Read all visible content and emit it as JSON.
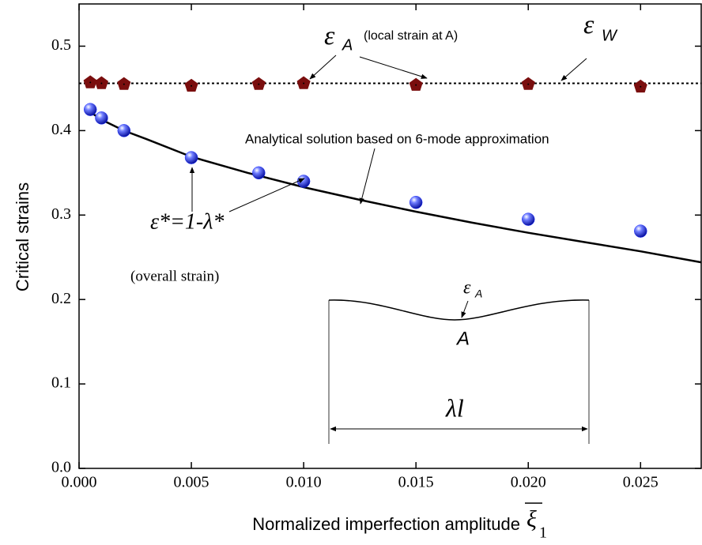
{
  "chart_data": {
    "type": "scatter",
    "y_label": "Critical strains",
    "x_label": "Normalized imperfection amplitude",
    "x_label_symbol": "ξ",
    "x_label_subscript": "1",
    "xlim": [
      0,
      0.0277
    ],
    "ylim": [
      0,
      0.55
    ],
    "xticks": [
      {
        "value": 0,
        "label": "0.000"
      },
      {
        "value": 0.005,
        "label": "0.005"
      },
      {
        "value": 0.01,
        "label": "0.010"
      },
      {
        "value": 0.015,
        "label": "0.015"
      },
      {
        "value": 0.02,
        "label": "0.020"
      },
      {
        "value": 0.025,
        "label": "0.025"
      }
    ],
    "yticks": [
      {
        "value": 0,
        "label": "0.0"
      },
      0.1,
      0.2,
      0.3,
      0.4,
      0.5
    ],
    "reference_line": {
      "y": 0.456,
      "color": "#000000",
      "style": "dotted"
    },
    "series": [
      {
        "kind": "line",
        "color": "#000000",
        "x": [
          0.0005,
          0.001,
          0.002,
          0.003,
          0.005,
          0.0075,
          0.01,
          0.0125,
          0.015,
          0.0175,
          0.02,
          0.0225,
          0.025,
          0.0277
        ],
        "values": [
          0.422,
          0.413,
          0.4,
          0.39,
          0.369,
          0.35,
          0.333,
          0.318,
          0.304,
          0.291,
          0.279,
          0.268,
          0.257,
          0.244
        ]
      },
      {
        "kind": "markers",
        "marker": "pentagon",
        "color": "#7a0e0e",
        "x": [
          0.0005,
          0.001,
          0.002,
          0.005,
          0.008,
          0.01,
          0.015,
          0.02,
          0.025
        ],
        "values": [
          0.457,
          0.456,
          0.455,
          0.453,
          0.455,
          0.456,
          0.454,
          0.455,
          0.452
        ]
      },
      {
        "kind": "markers",
        "marker": "sphere",
        "color": "#1a2cff",
        "x": [
          0.0005,
          0.001,
          0.002,
          0.005,
          0.008,
          0.01,
          0.015,
          0.02,
          0.025
        ],
        "values": [
          0.425,
          0.415,
          0.4,
          0.368,
          0.35,
          0.34,
          0.315,
          0.295,
          0.281
        ]
      }
    ],
    "annotations": {
      "epsilon_a": {
        "symbol": "ε",
        "subscript": "A",
        "note": "(local strain at A)"
      },
      "epsilon_w": {
        "symbol": "ε",
        "subscript": "W"
      },
      "analytical": "Analytical solution based on 6-mode approximation",
      "overall_formula": "ε*=1-λ*",
      "overall_note": "(overall strain)",
      "inset": {
        "symbol": "ε",
        "subscript": "A",
        "point": "A",
        "length": "λl"
      }
    }
  }
}
